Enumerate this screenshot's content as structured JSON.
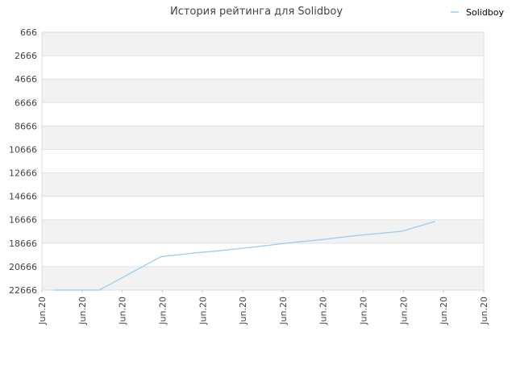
{
  "chart_data": {
    "type": "line",
    "title": "История рейтинга для Solidboy",
    "legend": {
      "position": "top-right",
      "entries": [
        "Solidboy"
      ]
    },
    "xlabel": "",
    "ylabel": "",
    "y_inverted": true,
    "ylim": [
      666,
      22666
    ],
    "y_ticks": [
      666,
      2666,
      4666,
      6666,
      8666,
      10666,
      12666,
      14666,
      16666,
      18666,
      20666,
      22666
    ],
    "x_ticks": [
      "Jun.20",
      "Jun.20",
      "Jun.20",
      "Jun.20",
      "Jun.20",
      "Jun.20",
      "Jun.20",
      "Jun.20",
      "Jun.20",
      "Jun.20",
      "Jun.20",
      "Jun.20"
    ],
    "grid": true,
    "band_colors": [
      "#f2f2f2",
      "#ffffff"
    ],
    "series": [
      {
        "name": "Solidboy",
        "color": "#99ccee",
        "x": [
          0.025,
          0.13,
          0.27,
          0.31,
          0.345,
          0.39,
          0.44,
          0.49,
          0.535,
          0.58,
          0.625,
          0.67,
          0.715,
          0.76,
          0.815,
          0.89
        ],
        "values": [
          22666,
          22666,
          19800,
          19650,
          19500,
          19350,
          19150,
          18950,
          18750,
          18550,
          18400,
          18200,
          18000,
          17850,
          17650,
          16800
        ]
      }
    ]
  }
}
